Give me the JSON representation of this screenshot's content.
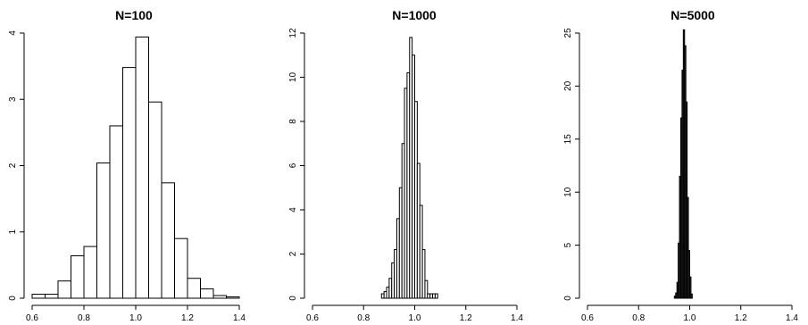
{
  "chart_data": [
    {
      "type": "bar",
      "title": "N=100",
      "xlabel": "",
      "ylabel": "",
      "xlim": [
        0.6,
        1.4
      ],
      "ylim": [
        0,
        4
      ],
      "x_ticks": [
        "0.6",
        "0.8",
        "1.0",
        "1.2",
        "1.4"
      ],
      "y_ticks": [
        "0",
        "1",
        "2",
        "3",
        "4"
      ],
      "bin_width": 0.05,
      "bin_start": 0.6,
      "values": [
        0.06,
        0.06,
        0.26,
        0.64,
        0.78,
        2.04,
        2.6,
        3.48,
        3.94,
        2.96,
        1.74,
        0.9,
        0.3,
        0.14,
        0.04,
        0.02
      ]
    },
    {
      "type": "bar",
      "title": "N=1000",
      "xlabel": "",
      "ylabel": "",
      "xlim": [
        0.6,
        1.4
      ],
      "ylim": [
        0,
        12
      ],
      "x_ticks": [
        "0.6",
        "0.8",
        "1.0",
        "1.2",
        "1.4"
      ],
      "y_ticks": [
        "0",
        "2",
        "4",
        "6",
        "8",
        "10",
        "12"
      ],
      "bin_width": 0.01,
      "bin_start": 0.87,
      "values": [
        0.2,
        0.3,
        0.5,
        0.9,
        1.6,
        2.2,
        3.6,
        5.0,
        7.0,
        9.5,
        10.2,
        11.8,
        11.0,
        8.9,
        6.1,
        4.2,
        2.2,
        0.8,
        0.2,
        0.2,
        0.2,
        0.2
      ]
    },
    {
      "type": "bar",
      "title": "N=5000",
      "xlabel": "",
      "ylabel": "",
      "xlim": [
        0.6,
        1.4
      ],
      "ylim": [
        0,
        25
      ],
      "x_ticks": [
        "0.6",
        "0.8",
        "1.0",
        "1.2",
        "1.4"
      ],
      "y_ticks": [
        "0",
        "5",
        "10",
        "15",
        "20",
        "25"
      ],
      "bin_width": 0.005,
      "bin_start": 0.94,
      "values": [
        0.2,
        0.5,
        1.5,
        5.2,
        11.5,
        17.0,
        21.5,
        25.3,
        23.8,
        18.5,
        9.5,
        4.5,
        2.0,
        0.4
      ]
    }
  ],
  "colors": {
    "bar_fill": "#ffffff",
    "bar_stroke": "#000000",
    "axis": "#000000"
  }
}
